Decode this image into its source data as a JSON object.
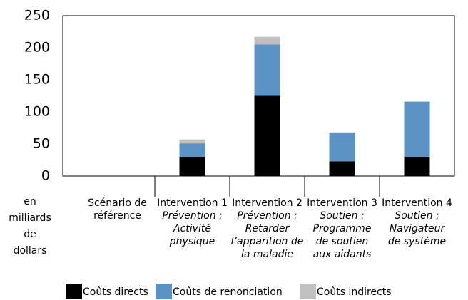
{
  "chart_data": {
    "type": "stacked_bar",
    "y_label": [
      "en",
      "milliards",
      "de",
      "dollars"
    ],
    "categories": [
      [
        "Scénario de",
        "référence"
      ],
      [
        "Intervention 1"
      ],
      [
        "Intervention 2"
      ],
      [
        "Intervention 3"
      ],
      [
        "Intervention 4"
      ]
    ],
    "category_subtitles": [
      [],
      [
        "Prévention :",
        "Activité",
        "physique"
      ],
      [
        "Prévention :",
        "Retarder",
        "l’apparition de",
        "la maladie"
      ],
      [
        "Soutien :",
        "Programme",
        "de soutien",
        "aux aidants"
      ],
      [
        "Soutien :",
        "Navigateur",
        "de système"
      ]
    ],
    "series": [
      {
        "name": "Coûts directs",
        "color": "#000000",
        "values": [
          0,
          30,
          125,
          23,
          30
        ]
      },
      {
        "name": "Coûts de renonciation",
        "color": "#5b93c7",
        "values": [
          0,
          21,
          80,
          45,
          86
        ]
      },
      {
        "name": "Coûts indirects",
        "color": "#c0c0c0",
        "values": [
          0,
          6,
          12,
          0,
          0
        ]
      }
    ],
    "ylim": [
      0,
      250
    ],
    "yticks": [
      0,
      50,
      100,
      150,
      200,
      250
    ],
    "grid": false
  }
}
